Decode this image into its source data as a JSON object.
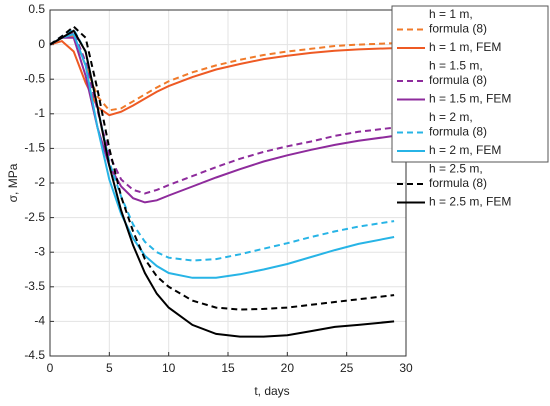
{
  "chart_data": {
    "type": "line",
    "xlabel": "t, days",
    "ylabel": "σ, MPa",
    "x": [
      0,
      1,
      2,
      3,
      4,
      5,
      6,
      7,
      8,
      9,
      10,
      12,
      14,
      16,
      18,
      20,
      22,
      24,
      26,
      29
    ],
    "series": [
      {
        "name": "h = 1 m, formula (8)",
        "color": "#f07a2a",
        "linestyle": "dashed",
        "values": [
          0,
          0.1,
          0.12,
          -0.3,
          -0.75,
          -0.95,
          -0.92,
          -0.82,
          -0.72,
          -0.62,
          -0.53,
          -0.4,
          -0.3,
          -0.22,
          -0.15,
          -0.1,
          -0.06,
          -0.02,
          0,
          0.02
        ]
      },
      {
        "name": "h = 1 m, FEM",
        "color": "#ee5a24",
        "linestyle": "solid",
        "values": [
          0,
          0.05,
          -0.1,
          -0.55,
          -0.9,
          -1.02,
          -0.97,
          -0.88,
          -0.78,
          -0.68,
          -0.6,
          -0.47,
          -0.36,
          -0.28,
          -0.21,
          -0.16,
          -0.12,
          -0.09,
          -0.07,
          -0.05
        ]
      },
      {
        "name": "h = 1.5 m, formula (8)",
        "color": "#8e2b9c",
        "linestyle": "dashed",
        "values": [
          0,
          0.12,
          0.18,
          -0.25,
          -0.95,
          -1.6,
          -1.95,
          -2.1,
          -2.15,
          -2.1,
          -2.03,
          -1.9,
          -1.77,
          -1.65,
          -1.55,
          -1.47,
          -1.4,
          -1.32,
          -1.26,
          -1.2
        ]
      },
      {
        "name": "h = 1.5 m, FEM",
        "color": "#8e2b9c",
        "linestyle": "solid",
        "values": [
          0,
          0.1,
          0.1,
          -0.45,
          -1.2,
          -1.75,
          -2.05,
          -2.22,
          -2.28,
          -2.25,
          -2.18,
          -2.05,
          -1.92,
          -1.8,
          -1.69,
          -1.6,
          -1.52,
          -1.45,
          -1.39,
          -1.32
        ]
      },
      {
        "name": "h = 2 m, formula (8)",
        "color": "#27b4e6",
        "linestyle": "dashed",
        "values": [
          0,
          0.12,
          0.22,
          -0.1,
          -0.9,
          -1.7,
          -2.2,
          -2.6,
          -2.85,
          -3.0,
          -3.08,
          -3.12,
          -3.1,
          -3.03,
          -2.95,
          -2.87,
          -2.78,
          -2.7,
          -2.63,
          -2.55
        ]
      },
      {
        "name": "h = 2 m, FEM",
        "color": "#27b4e6",
        "linestyle": "solid",
        "values": [
          0,
          0.1,
          0.15,
          -0.3,
          -1.2,
          -1.95,
          -2.45,
          -2.8,
          -3.05,
          -3.2,
          -3.3,
          -3.37,
          -3.37,
          -3.32,
          -3.25,
          -3.17,
          -3.07,
          -2.97,
          -2.88,
          -2.78
        ]
      },
      {
        "name": "h = 2.5 m, formula (8)",
        "color": "#000000",
        "linestyle": "dashed",
        "values": [
          0,
          0.12,
          0.26,
          0.1,
          -0.65,
          -1.5,
          -2.2,
          -2.7,
          -3.1,
          -3.35,
          -3.5,
          -3.7,
          -3.8,
          -3.83,
          -3.82,
          -3.8,
          -3.76,
          -3.72,
          -3.68,
          -3.62
        ]
      },
      {
        "name": "h = 2.5 m, FEM",
        "color": "#000000",
        "linestyle": "solid",
        "values": [
          0,
          0.1,
          0.2,
          -0.1,
          -0.9,
          -1.75,
          -2.4,
          -2.9,
          -3.3,
          -3.6,
          -3.8,
          -4.05,
          -4.18,
          -4.22,
          -4.22,
          -4.2,
          -4.14,
          -4.08,
          -4.05,
          -4.0
        ]
      }
    ],
    "xlim": [
      0,
      30
    ],
    "xticks": [
      0,
      5,
      10,
      15,
      20,
      25,
      30
    ],
    "ylim": [
      -4.5,
      0.5
    ],
    "yticks": [
      0.5,
      0,
      -0.5,
      -1,
      -1.5,
      -2,
      -2.5,
      -3,
      -3.5,
      -4,
      -4.5
    ],
    "grid": true,
    "legend": "outside-right"
  }
}
